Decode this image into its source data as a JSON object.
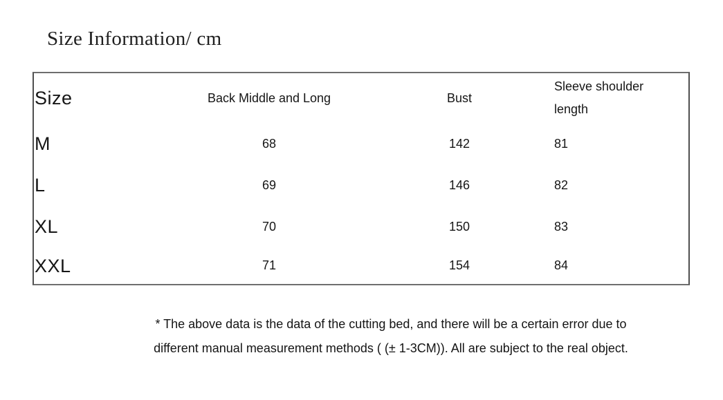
{
  "page": {
    "title": "Size Information/ cm",
    "unit": "cm"
  },
  "table": {
    "headers": [
      "Size",
      "Back Middle and Long",
      "Bust",
      "Sleeve shoulder length"
    ],
    "rows": [
      {
        "size": "M",
        "back_middle_and_long": "68",
        "bust": "142",
        "sleeve_shoulder_length": "81"
      },
      {
        "size": "L",
        "back_middle_and_long": "69",
        "bust": "146",
        "sleeve_shoulder_length": "82"
      },
      {
        "size": "XL",
        "back_middle_and_long": "70",
        "bust": "150",
        "sleeve_shoulder_length": "83"
      },
      {
        "size": "XXL",
        "back_middle_and_long": "71",
        "bust": "154",
        "sleeve_shoulder_length": "84"
      }
    ]
  },
  "note": {
    "line1": "* The above data is the data of the cutting bed, and there will be a certain error due to",
    "line2": "different manual measurement methods ( (± 1-3CM)). All are subject to the real object."
  },
  "colors": {
    "background": "#ffffff",
    "text": "#1a1a1a",
    "table_border": "#4f4f4f"
  }
}
